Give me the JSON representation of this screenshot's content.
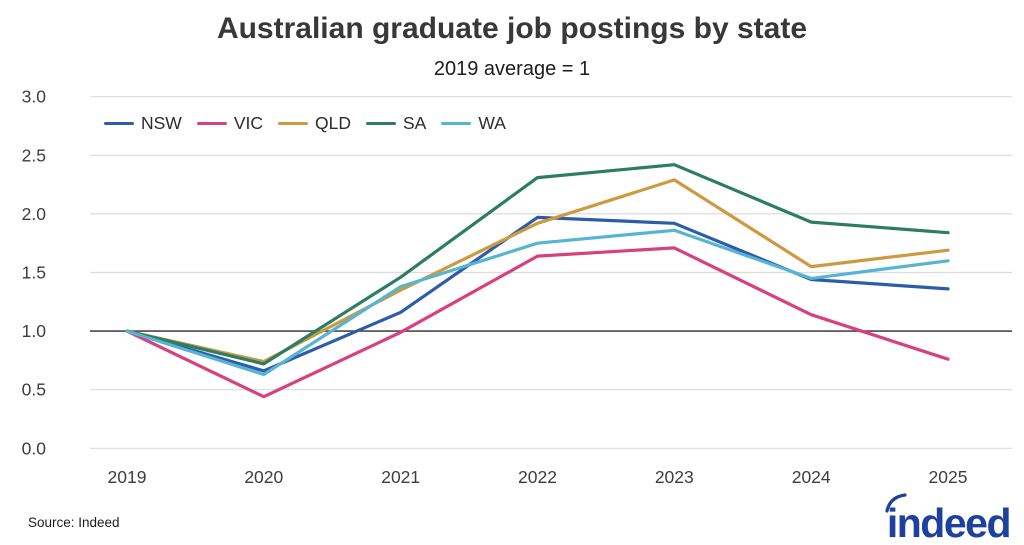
{
  "header": {
    "title": "Australian graduate job postings by state",
    "subtitle": "2019 average = 1"
  },
  "footer": {
    "source": "Source: Indeed",
    "logo_text": "indeed",
    "logo_color": "#1c429e"
  },
  "colors": {
    "grid": "#dcdcdc",
    "baseline": "#4a4a4a",
    "tick_text": "#3d3d3d",
    "background": "#ffffff"
  },
  "chart_data": {
    "type": "line",
    "title": "Australian graduate job postings by state",
    "subtitle": "2019 average = 1",
    "xlabel": "",
    "ylabel": "",
    "x": [
      2019,
      2020,
      2021,
      2022,
      2023,
      2024,
      2025
    ],
    "series": [
      {
        "name": "NSW",
        "color": "#2d5da9",
        "values": [
          1.0,
          0.66,
          1.16,
          1.97,
          1.92,
          1.44,
          1.36
        ]
      },
      {
        "name": "VIC",
        "color": "#d6417e",
        "values": [
          1.0,
          0.44,
          0.99,
          1.64,
          1.71,
          1.14,
          0.76
        ]
      },
      {
        "name": "QLD",
        "color": "#cd9a40",
        "values": [
          1.0,
          0.74,
          1.35,
          1.92,
          2.29,
          1.55,
          1.69
        ]
      },
      {
        "name": "SA",
        "color": "#2c7d63",
        "values": [
          1.0,
          0.72,
          1.46,
          2.31,
          2.42,
          1.93,
          1.84
        ]
      },
      {
        "name": "WA",
        "color": "#55b5d2",
        "values": [
          1.0,
          0.63,
          1.38,
          1.75,
          1.86,
          1.45,
          1.6
        ]
      }
    ],
    "ylim": [
      0.0,
      3.0
    ],
    "yticks": [
      0.0,
      0.5,
      1.0,
      1.5,
      2.0,
      2.5,
      3.0
    ],
    "ytick_labels": [
      "0.0",
      "0.5",
      "1.0",
      "1.5",
      "2.0",
      "2.5",
      "3.0"
    ],
    "baseline": 1.0,
    "grid": "horizontal",
    "legend_position": "top-left"
  }
}
